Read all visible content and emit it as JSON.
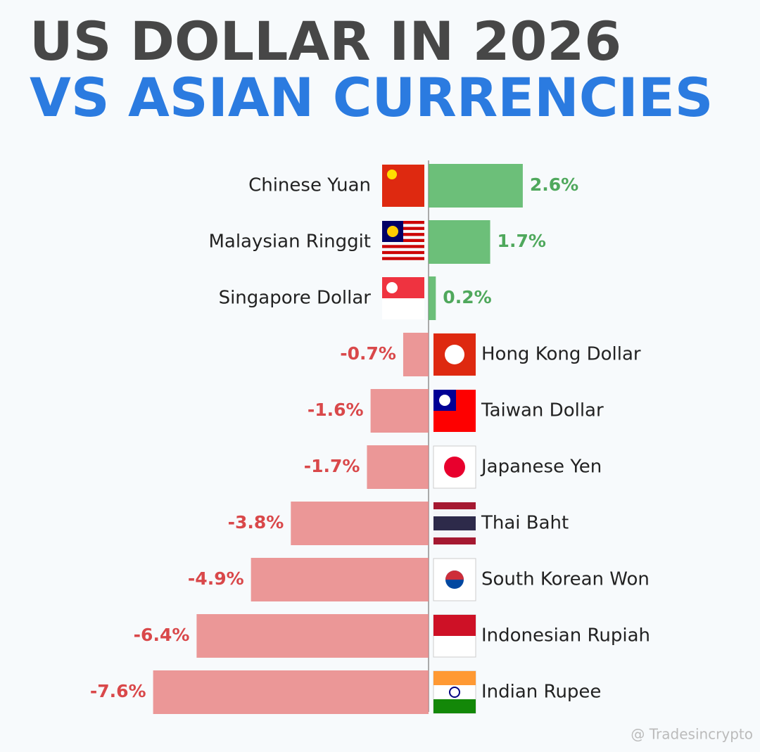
{
  "chart_data": {
    "type": "diverging-bar",
    "title": "US DOLLAR IN 2026",
    "subtitle": "VS ASIAN CURRENCIES",
    "categories": [
      "Chinese Yuan",
      "Malaysian Ringgit",
      "Singapore Dollar",
      "Hong Kong Dollar",
      "Taiwan Dollar",
      "Japanese Yen",
      "Thai Baht",
      "South Korean Won",
      "Indonesian Rupiah",
      "Indian Rupee"
    ],
    "values": [
      2.6,
      1.7,
      0.2,
      -0.7,
      -1.6,
      -1.7,
      -3.8,
      -4.9,
      -6.4,
      -7.6
    ],
    "value_labels": [
      "2.6%",
      "1.7%",
      "0.2%",
      "-0.7%",
      "-1.6%",
      "-1.7%",
      "-3.8%",
      "-4.9%",
      "-6.4%",
      "-7.6%"
    ],
    "positive_color": "#5cb86a",
    "negative_color": "#e98585",
    "watermark": "@ Tradesincrypto"
  }
}
